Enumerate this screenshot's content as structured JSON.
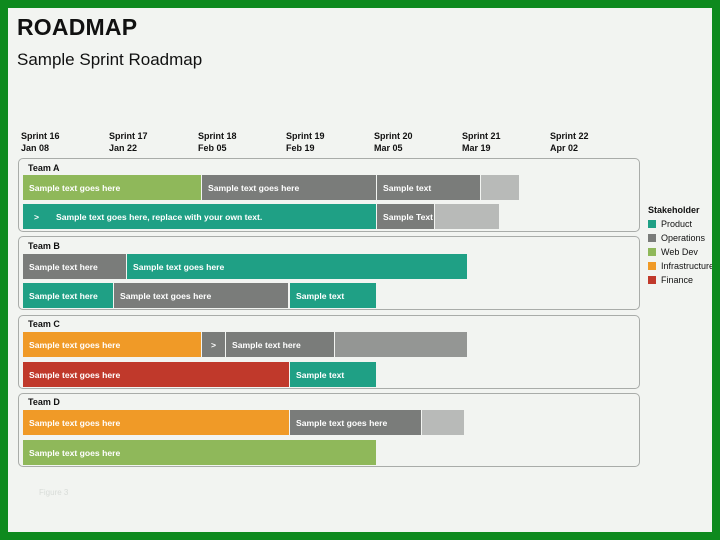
{
  "header": {
    "title": "ROADMAP",
    "subtitle": "Sample Sprint Roadmap"
  },
  "sprints": [
    {
      "name": "Sprint 16",
      "date": "Jan 08"
    },
    {
      "name": "Sprint 17",
      "date": "Jan 22"
    },
    {
      "name": "Sprint 18",
      "date": "Feb 05"
    },
    {
      "name": "Sprint 19",
      "date": "Feb 19"
    },
    {
      "name": "Sprint 20",
      "date": "Mar 05"
    },
    {
      "name": "Sprint 21",
      "date": "Mar 19"
    },
    {
      "name": "Sprint 22",
      "date": "Apr 02"
    }
  ],
  "teams": [
    {
      "label": "Team A",
      "rows": [
        [
          {
            "text": "Sample text goes here",
            "color": "#8fb85a"
          },
          {
            "text": "Sample text goes here",
            "color": "#7a7c7a"
          },
          {
            "text": "Sample text",
            "color": "#7a7c7a"
          },
          {
            "text": "",
            "color": "#b8bab8"
          }
        ],
        [
          {
            "text": ">",
            "color": "#1fa085"
          },
          {
            "text": "Sample text goes here, replace with your own text.",
            "color": "#1fa085"
          },
          {
            "text": "Sample Text",
            "color": "#7a7c7a"
          },
          {
            "text": "",
            "color": "#b8bab8"
          }
        ]
      ]
    },
    {
      "label": "Team B",
      "rows": [
        [
          {
            "text": "Sample text here",
            "color": "#7a7c7a"
          },
          {
            "text": "Sample text goes here",
            "color": "#1fa085"
          }
        ],
        [
          {
            "text": "Sample text here",
            "color": "#1fa085"
          },
          {
            "text": "Sample text goes here",
            "color": "#7a7c7a"
          },
          {
            "text": "Sample text",
            "color": "#1fa085"
          }
        ]
      ]
    },
    {
      "label": "Team C",
      "rows": [
        [
          {
            "text": "Sample text goes here",
            "color": "#f09a27"
          },
          {
            "text": ">",
            "color": "#7a7c7a"
          },
          {
            "text": "Sample text here",
            "color": "#7a7c7a"
          },
          {
            "text": "",
            "color": "#949694"
          }
        ],
        [
          {
            "text": "Sample text goes here",
            "color": "#c0392b"
          },
          {
            "text": "Sample text",
            "color": "#1fa085"
          }
        ]
      ]
    },
    {
      "label": "Team D",
      "rows": [
        [
          {
            "text": "Sample text goes here",
            "color": "#f09a27"
          },
          {
            "text": "Sample text goes here",
            "color": "#7a7c7a"
          },
          {
            "text": "",
            "color": "#b8bab8"
          }
        ],
        [
          {
            "text": "Sample text goes here",
            "color": "#8fb85a"
          }
        ]
      ]
    }
  ],
  "legend": {
    "title": "Stakeholder",
    "items": [
      {
        "label": "Product",
        "color": "#1fa085"
      },
      {
        "label": "Operations",
        "color": "#7a7c7a"
      },
      {
        "label": "Web Dev",
        "color": "#8fb85a"
      },
      {
        "label": "Infrastructure",
        "color": "#f09a27"
      },
      {
        "label": "Finance",
        "color": "#c0392b"
      }
    ]
  },
  "footer": {
    "text": "Figure 3"
  }
}
